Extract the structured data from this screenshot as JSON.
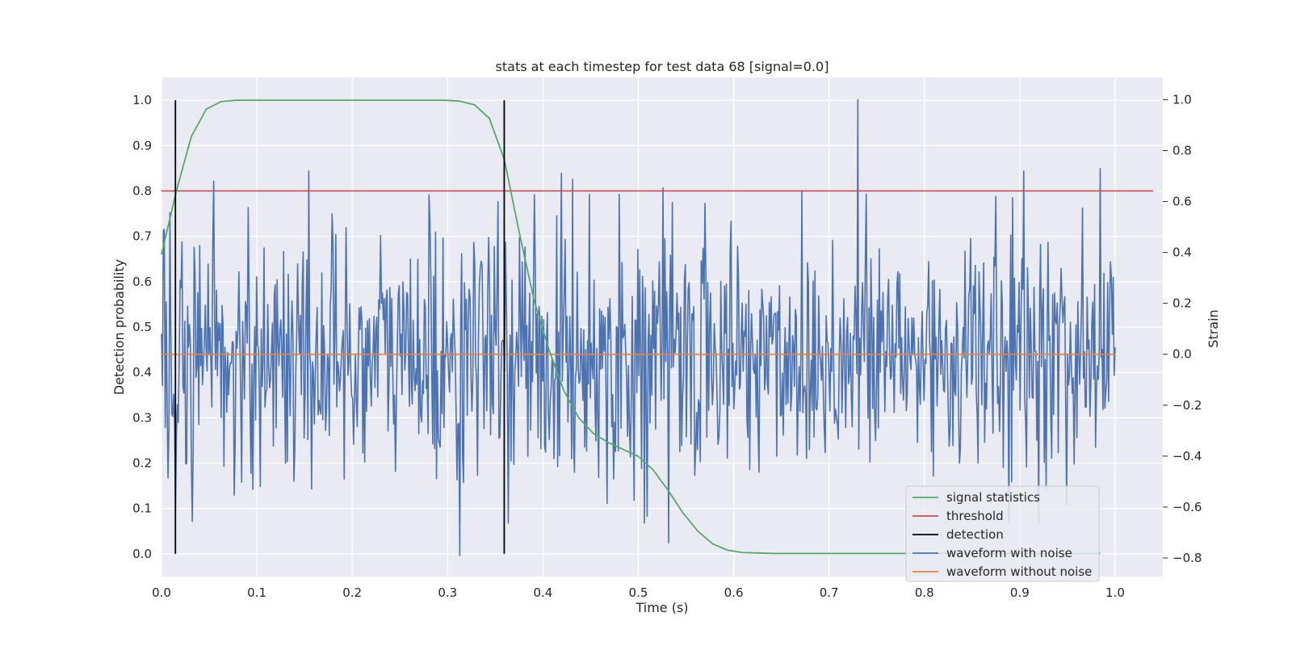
{
  "chart_data": {
    "type": "line",
    "title": "stats at each timestep for test data 68 [signal=0.0]",
    "xlabel": "Time (s)",
    "ylabel": "Detection probability",
    "ylabel_right": "Strain",
    "xlim": [
      0.0,
      1.05
    ],
    "ylim": [
      -0.05,
      1.05
    ],
    "ylim_right": [
      -0.873,
      1.087
    ],
    "x_ticks": [
      "0.0",
      "0.1",
      "0.2",
      "0.3",
      "0.4",
      "0.5",
      "0.6",
      "0.7",
      "0.8",
      "0.9",
      "1.0"
    ],
    "y_ticks": [
      "0.0",
      "0.1",
      "0.2",
      "0.3",
      "0.4",
      "0.5",
      "0.6",
      "0.7",
      "0.8",
      "0.9",
      "1.0"
    ],
    "y_right_ticks": [
      "−0.8",
      "−0.6",
      "−0.4",
      "−0.2",
      "0.0",
      "0.2",
      "0.4",
      "0.6",
      "0.8",
      "1.0"
    ],
    "grid": true,
    "legend_position": "lower right",
    "colors": {
      "background": "#eaeaf2",
      "grid": "#ffffff",
      "signal_statistics": "#55a868",
      "threshold": "#c44e52",
      "detection": "#000000",
      "waveform_with_noise": "#4c72b0",
      "waveform_without_noise": "#dd8452"
    },
    "series": [
      {
        "name": "signal statistics",
        "axis": "left",
        "x": [
          0.0,
          0.0156,
          0.0313,
          0.0469,
          0.0625,
          0.0781,
          0.0938,
          0.1094,
          0.125,
          0.1406,
          0.1563,
          0.1719,
          0.1875,
          0.2031,
          0.2188,
          0.2344,
          0.25,
          0.2656,
          0.2813,
          0.2969,
          0.3125,
          0.3281,
          0.3438,
          0.3594,
          0.375,
          0.3906,
          0.4063,
          0.4219,
          0.4375,
          0.4531,
          0.4688,
          0.4844,
          0.5,
          0.5156,
          0.5313,
          0.5469,
          0.5625,
          0.5781,
          0.5938,
          0.6094,
          0.625,
          0.6406,
          0.6563,
          0.6719,
          0.6875,
          0.7031,
          0.7188,
          0.7344,
          0.75,
          0.7656,
          0.7813,
          0.7969,
          0.8125,
          0.8281,
          0.8438,
          0.8594,
          0.875,
          0.8906,
          0.9063,
          0.9219,
          0.9375,
          0.9531,
          0.9688,
          0.9844
        ],
        "values": [
          0.66,
          0.8,
          0.92,
          0.98,
          0.997,
          1.0,
          1.0,
          1.0,
          1.0,
          1.0,
          1.0,
          1.0,
          1.0,
          1.0,
          1.0,
          1.0,
          1.0,
          1.0,
          1.0,
          1.0,
          0.998,
          0.99,
          0.96,
          0.87,
          0.71,
          0.56,
          0.45,
          0.36,
          0.3,
          0.265,
          0.245,
          0.23,
          0.215,
          0.185,
          0.14,
          0.09,
          0.05,
          0.022,
          0.008,
          0.003,
          0.002,
          0.001,
          0.001,
          0.001,
          0.001,
          0.001,
          0.001,
          0.001,
          0.001,
          0.001,
          0.001,
          0.001,
          0.001,
          0.001,
          0.001,
          0.001,
          0.001,
          0.001,
          0.001,
          0.001,
          0.001,
          0.001,
          0.001,
          0.001
        ]
      },
      {
        "name": "threshold",
        "axis": "left",
        "x": [
          0.0,
          1.04
        ],
        "values": [
          0.8,
          0.8
        ]
      },
      {
        "name": "detection",
        "axis": "left",
        "x_positions": [
          0.0146,
          0.3594
        ],
        "range": [
          0.0,
          1.0
        ]
      },
      {
        "name": "waveform with noise",
        "axis": "right",
        "x_range": [
          0.0,
          1.0
        ],
        "samples": 1024,
        "noise_std": 0.25,
        "highlights": [
          {
            "x": 0.7305,
            "value": 1.0
          },
          {
            "x": 0.3125,
            "value": -0.79
          },
          {
            "x": 0.9844,
            "value": 0.73
          },
          {
            "x": 0.0547,
            "value": 0.68
          },
          {
            "x": 0.5313,
            "value": -0.74
          }
        ]
      },
      {
        "name": "waveform without noise",
        "axis": "right",
        "x": [
          0.0,
          1.0
        ],
        "values": [
          0.0,
          0.0
        ]
      }
    ],
    "legend": [
      "signal statistics",
      "threshold",
      "detection",
      "waveform with noise",
      "waveform without noise"
    ]
  }
}
